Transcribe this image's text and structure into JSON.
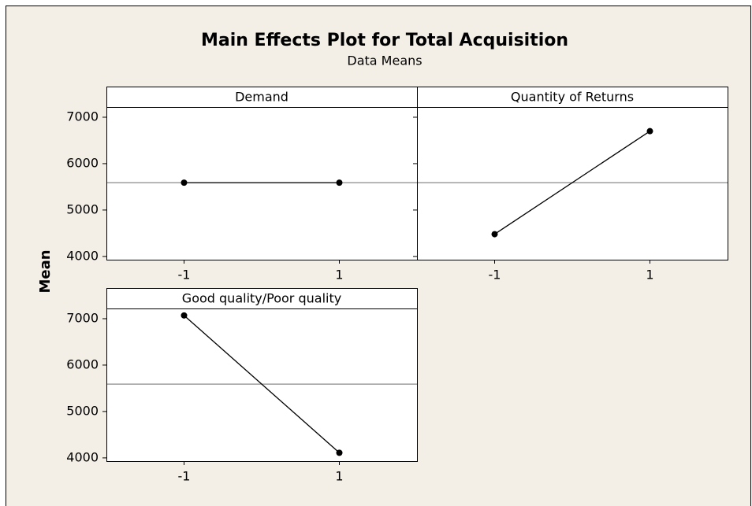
{
  "chart_data": {
    "type": "line",
    "title": "Main Effects Plot for Total Acquisition",
    "subtitle": "Data Means",
    "y_label": "Mean",
    "reference": 5590,
    "xlim": [
      -2,
      2
    ],
    "xticks": [
      -1,
      1
    ],
    "ylim": [
      3930,
      7220
    ],
    "yticks": [
      4000,
      5000,
      6000,
      7000
    ],
    "panels": [
      {
        "title": "Demand",
        "x": [
          -1,
          1
        ],
        "values": [
          5590,
          5590
        ]
      },
      {
        "title": "Quantity of Returns",
        "x": [
          -1,
          1
        ],
        "values": [
          4480,
          6700
        ]
      },
      {
        "title": "Good quality/Poor quality",
        "x": [
          -1,
          1
        ],
        "values": [
          7070,
          4110
        ]
      }
    ]
  }
}
